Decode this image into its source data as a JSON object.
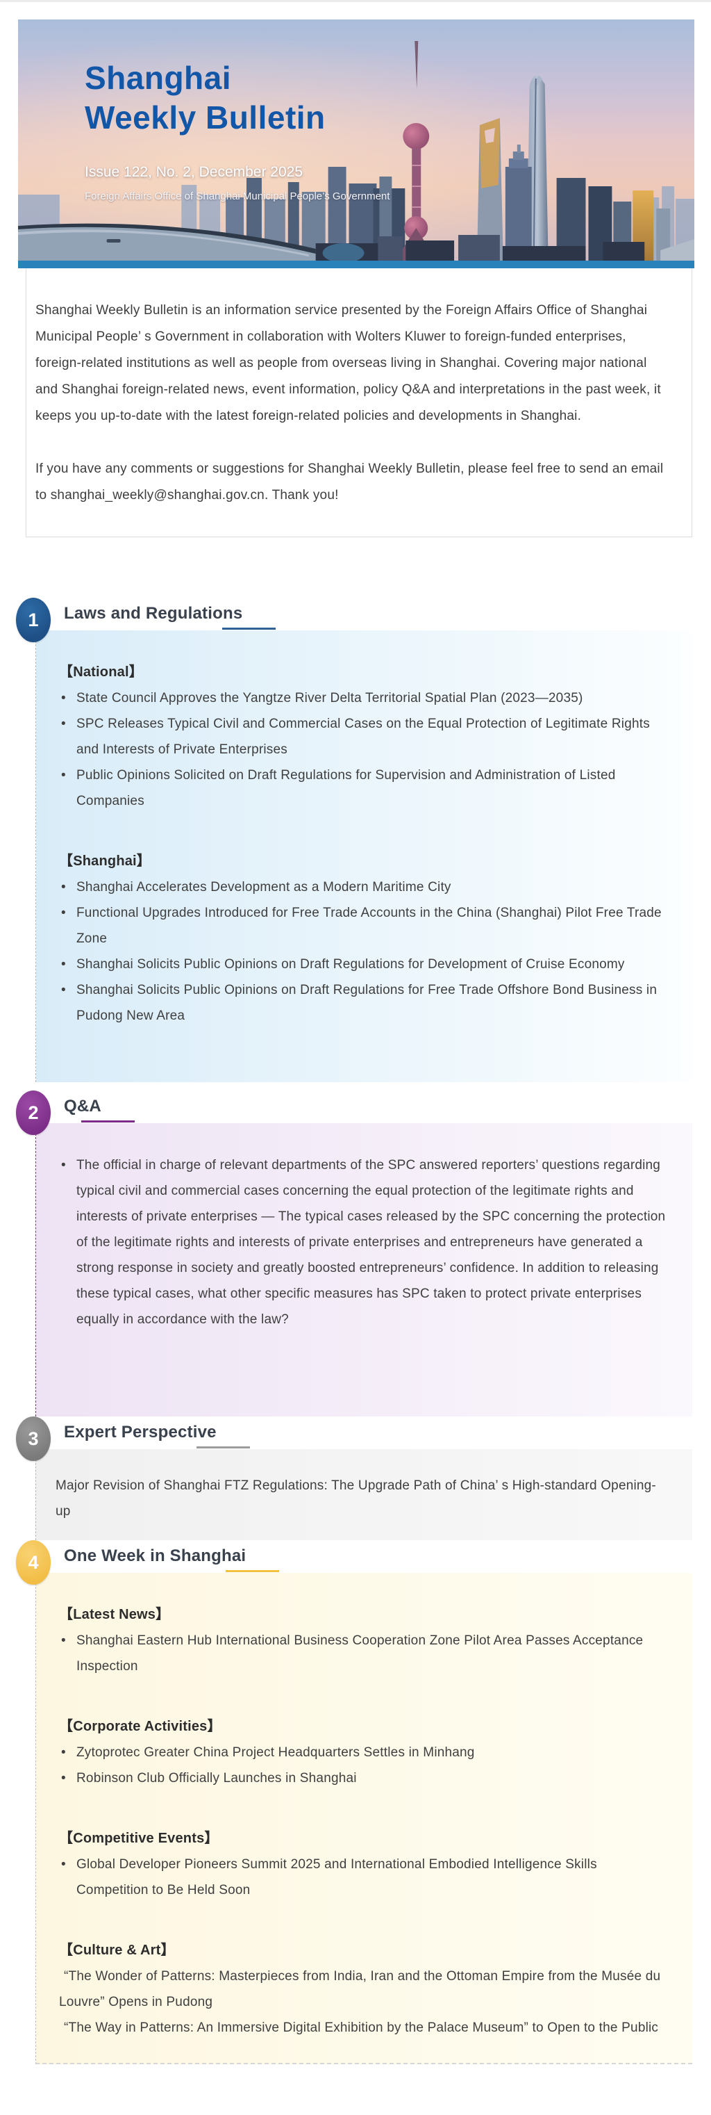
{
  "banner": {
    "title_line1": "Shanghai",
    "title_line2": "Weekly Bulletin",
    "issue_line": "Issue 122, No. 2, December 2025",
    "org_line": "Foreign Affairs Office of Shanghai Municipal People’s Government",
    "title_color": "#1256a8",
    "bottom_bar_color": "#2a82ba"
  },
  "intro": {
    "paragraph1": "Shanghai Weekly Bulletin is an information service presented by the Foreign Affairs Office of Shanghai Municipal People’ s Government in collaboration with Wolters Kluwer to foreign-funded enterprises, foreign-related institutions as well as people from overseas living in Shanghai. Covering major national and Shanghai foreign-related news, event information, policy Q&A and interpretations in the past week, it keeps you up-to-date with the latest foreign-related policies and developments in Shanghai.",
    "paragraph2": "If you have any comments or suggestions for Shanghai Weekly Bulletin, please feel free to send an email to shanghai_weekly@shanghai.gov.cn. Thank you!",
    "email": "shanghai_weekly@shanghai.gov.cn"
  },
  "sections": [
    {
      "number": "1",
      "slug": "laws-and-regulations",
      "title": "Laws and Regulations",
      "badge_color": "#1d4e84",
      "badge_color_light": "#2e6ba6",
      "underline_color": "#2f6195",
      "dash_color": "#b4b4b4",
      "panel_bg_from": "#d8ecf8",
      "panel_bg_to": "#fcfeff",
      "groups": [
        {
          "header": "【National】",
          "style": "bullet",
          "items": [
            "State Council Approves the Yangtze River Delta Territorial Spatial Plan (2023—2035)",
            "SPC Releases Typical Civil and Commercial Cases on the Equal Protection of Legitimate Rights and Interests of Private Enterprises",
            "Public Opinions Solicited on Draft Regulations for Supervision and Administration of Listed Companies"
          ]
        },
        {
          "header": "【Shanghai】",
          "style": "bullet",
          "items": [
            "Shanghai Accelerates Development as a Modern Maritime City",
            "Functional Upgrades Introduced for Free Trade Accounts in the China (Shanghai) Pilot Free Trade Zone",
            "Shanghai Solicits Public Opinions on Draft Regulations for Development of Cruise Economy",
            "Shanghai Solicits Public Opinions on Draft Regulations for Free Trade Offshore Bond Business in Pudong New Area"
          ]
        }
      ]
    },
    {
      "number": "2",
      "slug": "q-and-a",
      "title": "Q&A",
      "badge_color": "#7c2d87",
      "badge_color_light": "#9a4aa4",
      "underline_color": "#7c2d87",
      "dash_color": "#6e3a74",
      "panel_bg_from": "#eee3f4",
      "panel_bg_to": "#fbf8fd",
      "groups": [
        {
          "style": "bullet",
          "items": [
            "The official in charge of relevant departments of the SPC answered reporters’ questions regarding typical civil and commercial cases concerning the equal protection of the legitimate rights and interests of private enterprises — The typical cases released by the SPC concerning the protection of the legitimate rights and interests of private enterprises and entrepreneurs have generated a strong response in society and greatly boosted entrepreneurs’ confidence. In addition to releasing these typical cases, what other specific measures has SPC taken to protect private enterprises equally in accordance with the law?"
          ]
        }
      ]
    },
    {
      "number": "3",
      "slug": "expert-perspective",
      "title": "Expert Perspective",
      "badge_color": "#7a7a7a",
      "badge_color_light": "#999999",
      "underline_color": "#9b9b9b",
      "dash_color": "#b4b4b4",
      "panel_bg_from": "#f0f0f0",
      "panel_bg_to": "#f8f8f8",
      "groups": [
        {
          "style": "plain",
          "items": [
            "Major Revision of Shanghai FTZ Regulations: The Upgrade Path of China’ s High-standard Opening-up"
          ]
        }
      ]
    },
    {
      "number": "4",
      "slug": "one-week-in-shanghai",
      "title": "One Week in Shanghai",
      "badge_color": "#f2bd45",
      "badge_color_light": "#f8d272",
      "underline_color": "#f2c23e",
      "dash_color": "#bdbdbd",
      "panel_bg_from": "#fdf7e1",
      "panel_bg_to": "#fffdf2",
      "groups": [
        {
          "header": "【Latest News】",
          "style": "bullet",
          "items": [
            "Shanghai Eastern Hub International Business Cooperation Zone Pilot Area Passes Acceptance Inspection"
          ]
        },
        {
          "header": "【Corporate Activities】",
          "style": "bullet",
          "items": [
            "Zytoprotec Greater China Project Headquarters Settles in Minhang",
            "Robinson Club Officially Launches in Shanghai"
          ]
        },
        {
          "header": "【Competitive Events】",
          "style": "bullet",
          "items": [
            "Global Developer Pioneers Summit 2025 and International Embodied Intelligence Skills Competition to Be Held Soon"
          ]
        },
        {
          "header": "【Culture & Art】",
          "style": "quote",
          "items": [
            "“The Wonder of Patterns: Masterpieces from India, Iran and the Ottoman Empire from the Musée du Louvre” Opens in Pudong",
            "“The Way in Patterns: An Immersive Digital Exhibition by the Palace Museum” to Open to the Public"
          ]
        }
      ]
    }
  ]
}
